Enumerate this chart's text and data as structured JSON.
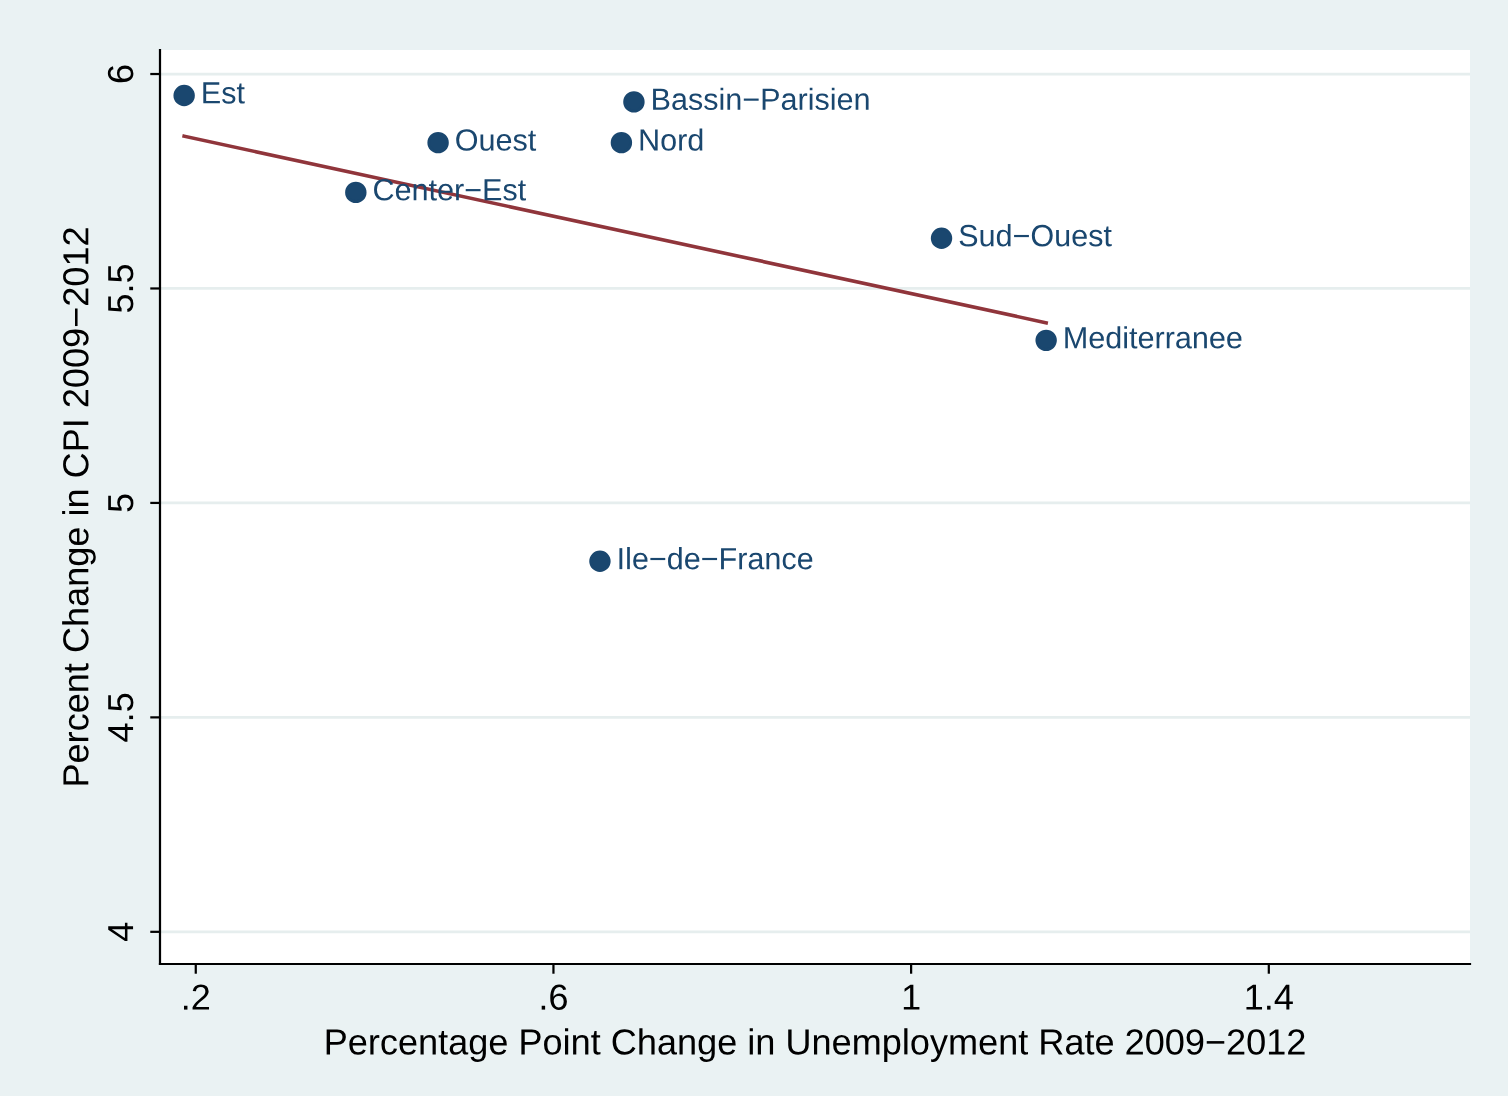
{
  "chart_data": {
    "type": "scatter",
    "xlabel": "Percentage Point Change in Unemployment Rate 2009−2012",
    "ylabel": "Percent Change in CPI 2009−2012",
    "series": [
      {
        "color": "#1a476f",
        "marker": "circle",
        "x": [
          0.187,
          0.69,
          0.471,
          0.676,
          0.379,
          1.034,
          1.151,
          0.652
        ],
        "values": [
          5.95,
          5.935,
          5.84,
          5.84,
          5.724,
          5.617,
          5.379,
          4.864
        ]
      },
      {
        "type": "line",
        "color": "#90353b",
        "marker": "none",
        "line_style": "solid",
        "x": [
          0.187,
          1.151
        ],
        "values": [
          5.855,
          5.42
        ]
      }
    ],
    "annotations": [
      {
        "text": "Est",
        "x": 0.187,
        "y": 5.95
      },
      {
        "text": "Bassin−Parisien",
        "x": 0.69,
        "y": 5.935
      },
      {
        "text": "Ouest",
        "x": 0.471,
        "y": 5.84
      },
      {
        "text": "Nord",
        "x": 0.676,
        "y": 5.84
      },
      {
        "text": "Center−Est",
        "x": 0.379,
        "y": 5.724
      },
      {
        "text": "Sud−Ouest",
        "x": 1.034,
        "y": 5.617
      },
      {
        "text": "Mediterranee",
        "x": 1.151,
        "y": 5.379
      },
      {
        "text": "Ile−de−France",
        "x": 0.652,
        "y": 4.864
      }
    ],
    "xlim": [
      0.16,
      1.625
    ],
    "ylim": [
      3.925,
      6.056
    ],
    "xticks": [
      {
        "value": 0.2,
        "label": ".2"
      },
      {
        "value": 0.6,
        "label": ".6"
      },
      1,
      1.4
    ],
    "yticks": [
      4,
      4.5,
      5,
      5.5,
      6
    ],
    "grid": "y",
    "legend": false
  }
}
